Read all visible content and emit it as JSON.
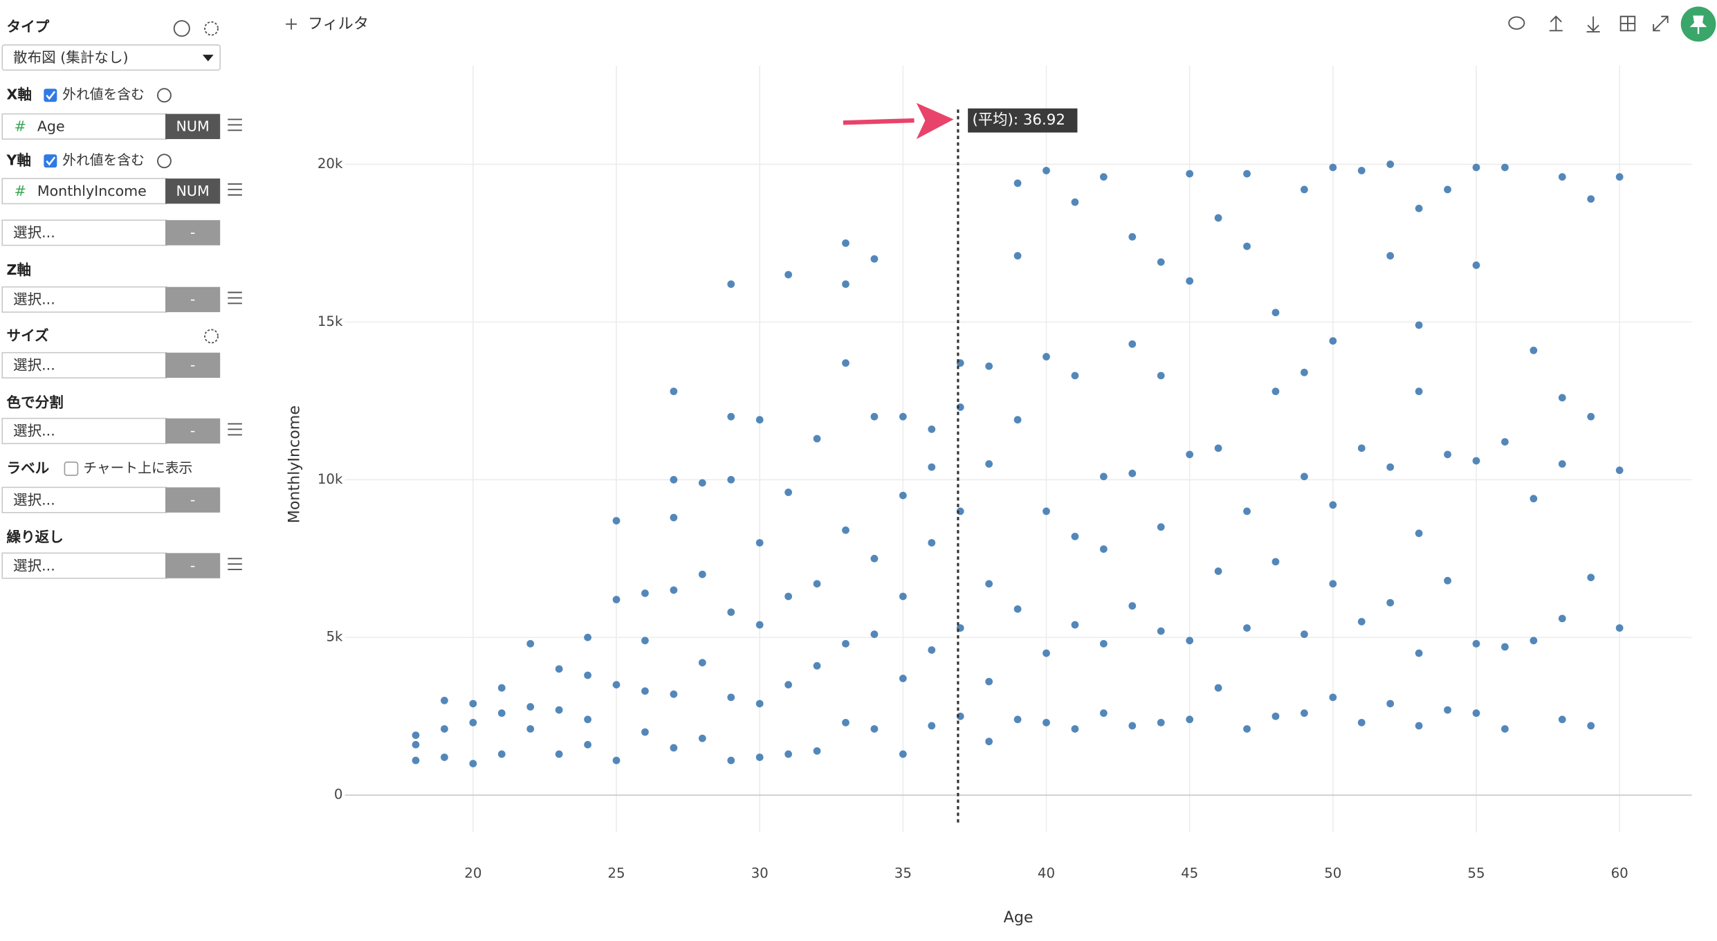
{
  "sidebar": {
    "type_label": "タイプ",
    "type_value": "散布図 (集計なし)",
    "x_axis": {
      "label": "X軸",
      "checkbox": "外れ値を含む",
      "field_icon": "#",
      "field": "Age",
      "field_type": "NUM"
    },
    "y_axis": {
      "label": "Y軸",
      "checkbox": "外れ値を含む",
      "field_icon": "#",
      "field": "MonthlyIncome",
      "field_type": "NUM"
    },
    "extra_select": {
      "placeholder": "選択...",
      "button": "-"
    },
    "z_axis": {
      "label": "Z軸",
      "placeholder": "選択...",
      "button": "-"
    },
    "size": {
      "label": "サイズ",
      "placeholder": "選択...",
      "button": "-"
    },
    "color_split": {
      "label": "色で分割",
      "placeholder": "選択...",
      "button": "-"
    },
    "labels": {
      "label": "ラベル",
      "checkbox": "チャート上に表示",
      "placeholder": "選択...",
      "button": "-"
    },
    "repeat": {
      "label": "繰り返し",
      "placeholder": "選択...",
      "button": "-"
    }
  },
  "toolbar": {
    "filter": "フィルタ"
  },
  "chart_data": {
    "type": "scatter",
    "x_label": "Age",
    "y_label": "MonthlyIncome",
    "color": "#3b76b1",
    "xlim": [
      15.53,
      62.52
    ],
    "ylim": [
      -1180,
      23125
    ],
    "xticks": [
      20,
      25,
      30,
      35,
      40,
      45,
      50,
      55,
      60
    ],
    "yticks": [
      0,
      {
        "value": 5000,
        "label": "5k"
      },
      {
        "value": 10000,
        "label": "10k"
      },
      {
        "value": 15000,
        "label": "15k"
      },
      {
        "value": 20000,
        "label": "20k"
      }
    ],
    "grid": true,
    "mean_line": {
      "value": 36.92,
      "label": "(平均): 36.92"
    },
    "x": [
      18,
      18,
      18,
      19,
      19,
      19,
      20,
      20,
      20,
      21,
      21,
      21,
      22,
      22,
      22,
      23,
      23,
      23,
      24,
      24,
      24,
      24,
      25,
      25,
      25,
      25,
      26,
      26,
      26,
      26,
      27,
      27,
      27,
      27,
      27,
      27,
      28,
      28,
      28,
      28,
      29,
      29,
      29,
      29,
      29,
      29,
      30,
      30,
      30,
      30,
      30,
      31,
      31,
      31,
      31,
      31,
      32,
      32,
      32,
      32,
      33,
      33,
      33,
      33,
      33,
      33,
      34,
      34,
      34,
      34,
      34,
      35,
      35,
      35,
      35,
      35,
      36,
      36,
      36,
      36,
      36,
      37,
      37,
      37,
      37,
      37,
      38,
      38,
      38,
      38,
      38,
      39,
      39,
      39,
      39,
      39,
      40,
      40,
      40,
      40,
      40,
      41,
      41,
      41,
      41,
      41,
      42,
      42,
      42,
      42,
      42,
      43,
      43,
      43,
      43,
      43,
      44,
      44,
      44,
      44,
      44,
      45,
      45,
      45,
      45,
      45,
      46,
      46,
      46,
      46,
      47,
      47,
      47,
      47,
      47,
      48,
      48,
      48,
      48,
      49,
      49,
      49,
      49,
      49,
      50,
      50,
      50,
      50,
      50,
      51,
      51,
      51,
      51,
      52,
      52,
      52,
      52,
      52,
      53,
      53,
      53,
      53,
      53,
      53,
      54,
      54,
      54,
      54,
      55,
      55,
      55,
      55,
      55,
      56,
      56,
      56,
      56,
      57,
      57,
      57,
      58,
      58,
      58,
      58,
      58,
      59,
      59,
      59,
      59,
      60,
      60,
      60
    ],
    "values": [
      1100,
      1600,
      1900,
      1200,
      2100,
      3000,
      1000,
      2300,
      2900,
      1300,
      2600,
      3400,
      2100,
      2800,
      4800,
      1300,
      2700,
      4000,
      1600,
      2400,
      3800,
      5000,
      1100,
      3500,
      6200,
      8700,
      2000,
      3300,
      4900,
      6400,
      1500,
      3200,
      6500,
      8800,
      10000,
      12800,
      1800,
      4200,
      7000,
      9900,
      1100,
      3100,
      5800,
      10000,
      12000,
      16200,
      1200,
      2900,
      5400,
      8000,
      11900,
      1300,
      3500,
      6300,
      9600,
      16500,
      1400,
      4100,
      6700,
      11300,
      2300,
      4800,
      8400,
      13700,
      17500,
      16200,
      2100,
      5100,
      7500,
      12000,
      17000,
      1300,
      3700,
      6300,
      9500,
      12000,
      2200,
      4600,
      8000,
      10400,
      11600,
      2500,
      5300,
      9000,
      12300,
      13700,
      1700,
      3600,
      6700,
      10500,
      13600,
      2400,
      5900,
      11900,
      17100,
      19400,
      2300,
      4500,
      9000,
      13900,
      19800,
      2100,
      5400,
      8200,
      13300,
      18800,
      2600,
      4800,
      7800,
      10100,
      19600,
      2200,
      6000,
      10200,
      14300,
      17700,
      2300,
      5200,
      8500,
      13300,
      16900,
      2400,
      4900,
      10800,
      16300,
      19700,
      3400,
      7100,
      11000,
      18300,
      2100,
      5300,
      9000,
      17400,
      19700,
      2500,
      7400,
      12800,
      15300,
      2600,
      5100,
      10100,
      13400,
      19200,
      3100,
      6700,
      9200,
      14400,
      19900,
      2300,
      5500,
      11000,
      19800,
      2900,
      6100,
      10400,
      17100,
      20000,
      2200,
      4500,
      8300,
      12800,
      14900,
      18600,
      2700,
      6800,
      10800,
      19200,
      2600,
      4800,
      10600,
      16800,
      19900,
      2100,
      4700,
      11200,
      19900,
      4900,
      9400,
      14100,
      2400,
      5600,
      10500,
      12600,
      19600,
      2200,
      6900,
      12000,
      18900,
      5300,
      10300,
      19600
    ]
  }
}
